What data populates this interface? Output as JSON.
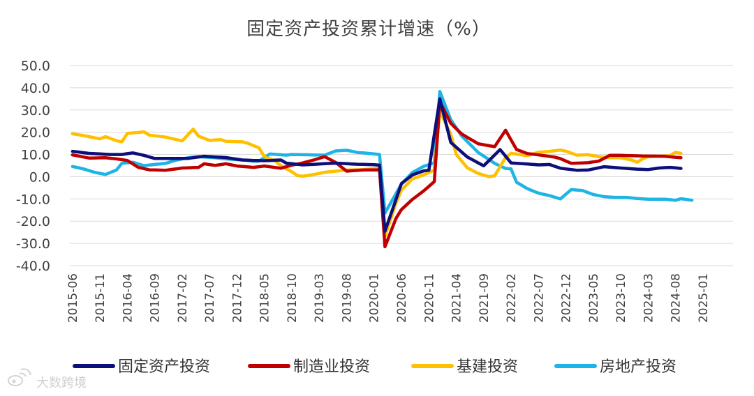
{
  "chart_data": {
    "type": "line",
    "title": "固定资产投资累计增速（%）",
    "xlabel": "",
    "ylabel": "",
    "ylim": [
      -40,
      50
    ],
    "yticks": [
      "50.0",
      "40.0",
      "30.0",
      "20.0",
      "10.0",
      "0.0",
      "-10.0",
      "-20.0",
      "-30.0",
      "-40.0"
    ],
    "ytick_values": [
      50,
      40,
      30,
      20,
      10,
      0,
      -10,
      -20,
      -30,
      -40
    ],
    "xticks": [
      "2015-06",
      "2015-11",
      "2016-04",
      "2016-09",
      "2017-02",
      "2017-07",
      "2017-12",
      "2018-05",
      "2018-10",
      "2019-03",
      "2019-08",
      "2020-01",
      "2020-06",
      "2020-11",
      "2021-04",
      "2021-09",
      "2022-02",
      "2022-07",
      "2022-12",
      "2023-05",
      "2023-10",
      "2024-03",
      "2024-08",
      "2025-01"
    ],
    "x_start": "2015-06",
    "n_points": 121,
    "grid": true,
    "legend_position": "bottom",
    "series": [
      {
        "name": "固定资产投资",
        "color": "#0d0f7a",
        "keypoints": [
          [
            0,
            11.4
          ],
          [
            3,
            10.5
          ],
          [
            7,
            10.0
          ],
          [
            9,
            10.0
          ],
          [
            11,
            10.7
          ],
          [
            13,
            9.6
          ],
          [
            15,
            8.2
          ],
          [
            18,
            8.2
          ],
          [
            21,
            8.2
          ],
          [
            23,
            8.9
          ],
          [
            24,
            9.2
          ],
          [
            28,
            8.6
          ],
          [
            31,
            7.5
          ],
          [
            33,
            7.3
          ],
          [
            35,
            7.2
          ],
          [
            38,
            7.5
          ],
          [
            39,
            6.1
          ],
          [
            42,
            5.3
          ],
          [
            45,
            5.7
          ],
          [
            48,
            6.1
          ],
          [
            52,
            5.6
          ],
          [
            55,
            5.4
          ],
          [
            56,
            5.2
          ],
          [
            57,
            -24.5
          ],
          [
            59,
            -10.3
          ],
          [
            60,
            -3.1
          ],
          [
            62,
            0.8
          ],
          [
            64,
            2.6
          ],
          [
            65,
            2.9
          ],
          [
            67,
            35.0
          ],
          [
            69,
            15.4
          ],
          [
            72,
            8.9
          ],
          [
            75,
            4.9
          ],
          [
            78,
            12.2
          ],
          [
            80,
            6.2
          ],
          [
            83,
            5.7
          ],
          [
            85,
            5.3
          ],
          [
            87,
            5.5
          ],
          [
            89,
            3.8
          ],
          [
            92,
            2.9
          ],
          [
            94,
            3.0
          ],
          [
            97,
            4.5
          ],
          [
            100,
            3.9
          ],
          [
            103,
            3.4
          ],
          [
            105,
            3.2
          ],
          [
            107,
            3.9
          ],
          [
            109,
            4.2
          ],
          [
            111,
            3.7
          ]
        ]
      },
      {
        "name": "制造业投资",
        "color": "#c00000",
        "keypoints": [
          [
            0,
            9.8
          ],
          [
            3,
            8.4
          ],
          [
            6,
            8.5
          ],
          [
            8,
            8.0
          ],
          [
            10,
            7.3
          ],
          [
            12,
            4.2
          ],
          [
            14,
            3.1
          ],
          [
            17,
            2.9
          ],
          [
            20,
            3.9
          ],
          [
            23,
            4.2
          ],
          [
            24,
            5.8
          ],
          [
            26,
            5.1
          ],
          [
            28,
            5.8
          ],
          [
            30,
            4.8
          ],
          [
            33,
            4.2
          ],
          [
            35,
            4.8
          ],
          [
            38,
            3.8
          ],
          [
            40,
            5.2
          ],
          [
            42,
            6.2
          ],
          [
            44,
            7.5
          ],
          [
            46,
            9.0
          ],
          [
            48,
            6.4
          ],
          [
            50,
            2.5
          ],
          [
            53,
            3.0
          ],
          [
            56,
            3.1
          ],
          [
            57,
            -31.5
          ],
          [
            59,
            -18.8
          ],
          [
            60,
            -14.8
          ],
          [
            62,
            -10.2
          ],
          [
            64,
            -6.5
          ],
          [
            66,
            -2.2
          ],
          [
            67,
            33.8
          ],
          [
            69,
            24.0
          ],
          [
            71,
            19.2
          ],
          [
            74,
            14.8
          ],
          [
            77,
            13.5
          ],
          [
            79,
            20.9
          ],
          [
            81,
            12.2
          ],
          [
            83,
            10.4
          ],
          [
            86,
            9.5
          ],
          [
            88,
            8.8
          ],
          [
            89,
            8.1
          ],
          [
            91,
            6.0
          ],
          [
            94,
            6.3
          ],
          [
            96,
            7.0
          ],
          [
            98,
            9.6
          ],
          [
            100,
            9.6
          ],
          [
            104,
            9.3
          ],
          [
            108,
            9.2
          ],
          [
            111,
            8.5
          ]
        ]
      },
      {
        "name": "基建投资",
        "color": "#ffc000",
        "keypoints": [
          [
            0,
            19.3
          ],
          [
            2,
            18.5
          ],
          [
            5,
            17.0
          ],
          [
            6,
            18.0
          ],
          [
            8,
            16.2
          ],
          [
            9,
            15.7
          ],
          [
            10,
            19.5
          ],
          [
            12,
            19.9
          ],
          [
            13,
            20.2
          ],
          [
            14,
            18.7
          ],
          [
            17,
            17.8
          ],
          [
            18,
            17.2
          ],
          [
            20,
            16.1
          ],
          [
            22,
            21.4
          ],
          [
            23,
            18.2
          ],
          [
            25,
            16.3
          ],
          [
            27,
            16.7
          ],
          [
            28,
            15.9
          ],
          [
            31,
            15.7
          ],
          [
            32,
            15.0
          ],
          [
            34,
            13.0
          ],
          [
            35,
            9.0
          ],
          [
            37,
            7.0
          ],
          [
            38,
            5.0
          ],
          [
            40,
            2.2
          ],
          [
            41,
            0.5
          ],
          [
            42,
            0.2
          ],
          [
            44,
            1.0
          ],
          [
            46,
            2.0
          ],
          [
            48,
            2.5
          ],
          [
            50,
            3.0
          ],
          [
            53,
            3.2
          ],
          [
            56,
            3.8
          ],
          [
            57,
            -26.9
          ],
          [
            59,
            -12.0
          ],
          [
            60,
            -6.0
          ],
          [
            62,
            -1.0
          ],
          [
            64,
            0.8
          ],
          [
            66,
            3.0
          ],
          [
            67,
            29.7
          ],
          [
            69,
            19.0
          ],
          [
            70,
            10.0
          ],
          [
            72,
            4.0
          ],
          [
            74,
            1.5
          ],
          [
            76,
            0.0
          ],
          [
            77,
            0.4
          ],
          [
            79,
            8.6
          ],
          [
            80,
            10.5
          ],
          [
            83,
            9.5
          ],
          [
            85,
            11.0
          ],
          [
            87,
            11.4
          ],
          [
            89,
            12.0
          ],
          [
            90,
            11.5
          ],
          [
            92,
            9.7
          ],
          [
            94,
            9.9
          ],
          [
            96,
            9.0
          ],
          [
            98,
            8.5
          ],
          [
            100,
            8.5
          ],
          [
            102,
            7.5
          ],
          [
            103,
            6.5
          ],
          [
            104,
            8.0
          ],
          [
            105,
            9.0
          ],
          [
            107,
            9.2
          ],
          [
            109,
            9.5
          ],
          [
            110,
            11.0
          ],
          [
            111,
            10.5
          ]
        ]
      },
      {
        "name": "房地产投资",
        "color": "#1eb4e6",
        "keypoints": [
          [
            0,
            4.6
          ],
          [
            2,
            3.5
          ],
          [
            4,
            2.0
          ],
          [
            6,
            1.0
          ],
          [
            8,
            3.0
          ],
          [
            9,
            6.0
          ],
          [
            11,
            6.5
          ],
          [
            13,
            5.0
          ],
          [
            15,
            5.5
          ],
          [
            17,
            6.0
          ],
          [
            19,
            7.5
          ],
          [
            21,
            8.5
          ],
          [
            23,
            9.0
          ],
          [
            26,
            8.5
          ],
          [
            28,
            8.0
          ],
          [
            31,
            7.5
          ],
          [
            33,
            7.0
          ],
          [
            34,
            7.0
          ],
          [
            36,
            10.2
          ],
          [
            39,
            9.7
          ],
          [
            40,
            10.0
          ],
          [
            42,
            9.9
          ],
          [
            44,
            9.8
          ],
          [
            46,
            9.7
          ],
          [
            48,
            11.6
          ],
          [
            50,
            11.9
          ],
          [
            52,
            10.9
          ],
          [
            54,
            10.5
          ],
          [
            56,
            10.0
          ],
          [
            57,
            -16.3
          ],
          [
            59,
            -7.7
          ],
          [
            60,
            -3.3
          ],
          [
            62,
            1.9
          ],
          [
            64,
            4.6
          ],
          [
            66,
            6.3
          ],
          [
            67,
            38.3
          ],
          [
            69,
            25.6
          ],
          [
            71,
            18.3
          ],
          [
            74,
            10.9
          ],
          [
            77,
            6.0
          ],
          [
            79,
            3.7
          ],
          [
            80,
            3.5
          ],
          [
            81,
            -2.5
          ],
          [
            83,
            -5.4
          ],
          [
            85,
            -7.4
          ],
          [
            87,
            -8.5
          ],
          [
            89,
            -10.0
          ],
          [
            91,
            -5.8
          ],
          [
            93,
            -6.2
          ],
          [
            95,
            -8.0
          ],
          [
            97,
            -9.0
          ],
          [
            99,
            -9.3
          ],
          [
            101,
            -9.3
          ],
          [
            103,
            -9.8
          ],
          [
            105,
            -10.1
          ],
          [
            108,
            -10.1
          ],
          [
            110,
            -10.6
          ],
          [
            111,
            -9.9
          ],
          [
            113,
            -10.6
          ]
        ]
      }
    ]
  },
  "watermark": {
    "icon": "weibo-logo",
    "text": "大数跨境"
  }
}
